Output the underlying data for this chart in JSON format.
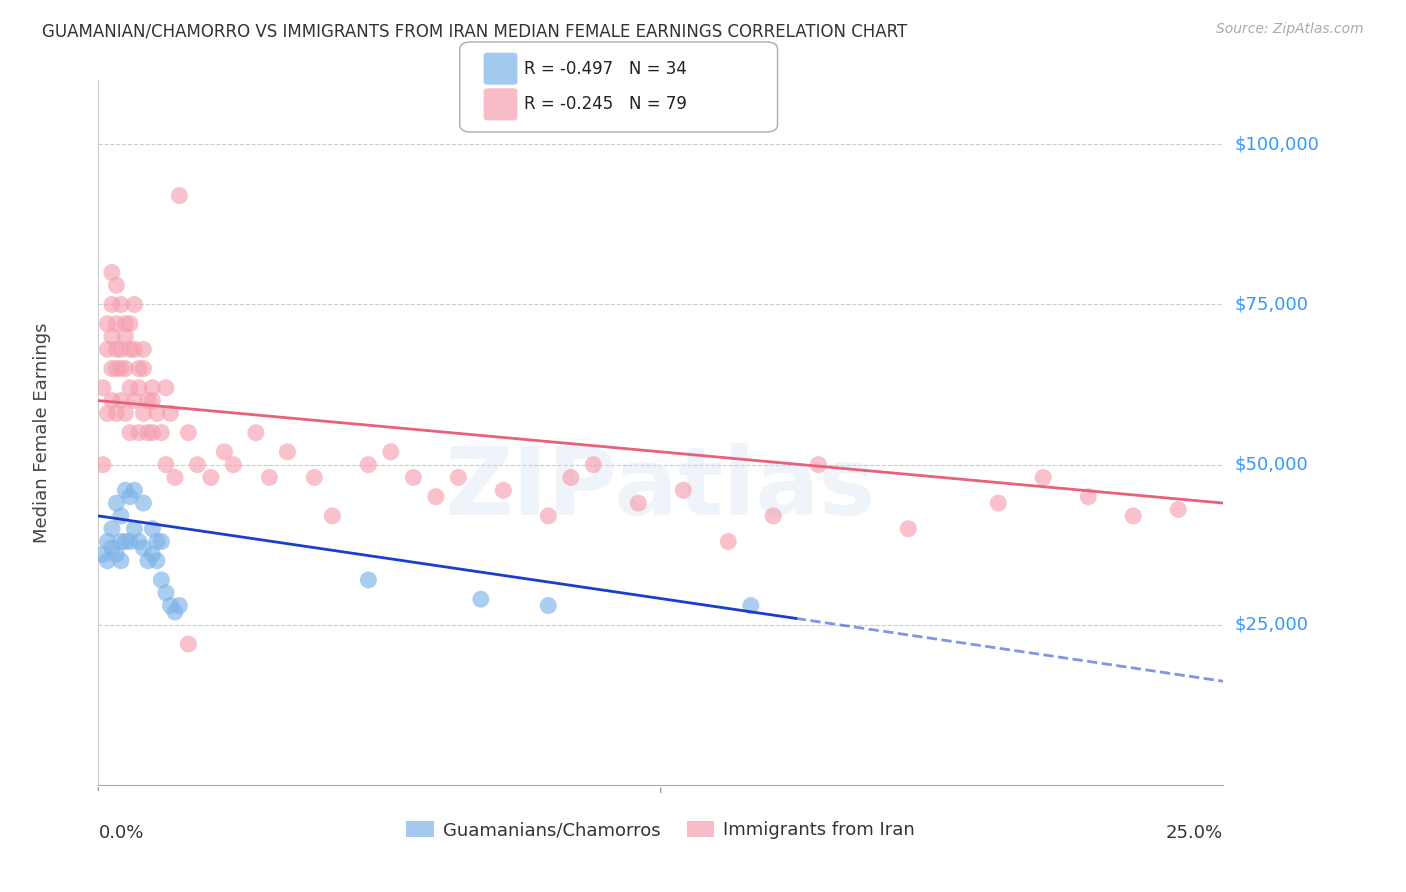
{
  "title": "GUAMANIAN/CHAMORRO VS IMMIGRANTS FROM IRAN MEDIAN FEMALE EARNINGS CORRELATION CHART",
  "source": "Source: ZipAtlas.com",
  "ylabel": "Median Female Earnings",
  "ytick_labels": [
    "$25,000",
    "$50,000",
    "$75,000",
    "$100,000"
  ],
  "ytick_values": [
    25000,
    50000,
    75000,
    100000
  ],
  "ylim": [
    0,
    110000
  ],
  "xlim": [
    0.0,
    0.25
  ],
  "legend_blue_r": "-0.497",
  "legend_blue_n": "34",
  "legend_pink_r": "-0.245",
  "legend_pink_n": "79",
  "blue_color": "#7EB3E8",
  "pink_color": "#F5A0B0",
  "line_blue": "#1A3ECC",
  "line_pink": "#E8607A",
  "background": "#FFFFFF",
  "watermark": "ZIPatlas",
  "blue_line_x0": 0.0,
  "blue_line_y0": 42000,
  "blue_line_x1": 0.155,
  "blue_line_y1": 26000,
  "pink_line_x0": 0.0,
  "pink_line_y0": 60000,
  "pink_line_x1": 0.25,
  "pink_line_y1": 44000,
  "blue_scatter_x": [
    0.001,
    0.002,
    0.002,
    0.003,
    0.003,
    0.004,
    0.004,
    0.005,
    0.005,
    0.005,
    0.006,
    0.006,
    0.007,
    0.007,
    0.008,
    0.008,
    0.009,
    0.01,
    0.01,
    0.011,
    0.012,
    0.012,
    0.013,
    0.013,
    0.014,
    0.014,
    0.015,
    0.016,
    0.017,
    0.018,
    0.06,
    0.085,
    0.1,
    0.145
  ],
  "blue_scatter_y": [
    36000,
    38000,
    35000,
    37000,
    40000,
    44000,
    36000,
    42000,
    38000,
    35000,
    46000,
    38000,
    45000,
    38000,
    46000,
    40000,
    38000,
    37000,
    44000,
    35000,
    40000,
    36000,
    38000,
    35000,
    32000,
    38000,
    30000,
    28000,
    27000,
    28000,
    32000,
    29000,
    28000,
    28000
  ],
  "pink_scatter_x": [
    0.001,
    0.001,
    0.002,
    0.002,
    0.002,
    0.003,
    0.003,
    0.003,
    0.003,
    0.004,
    0.004,
    0.004,
    0.004,
    0.005,
    0.005,
    0.005,
    0.006,
    0.006,
    0.006,
    0.007,
    0.007,
    0.007,
    0.008,
    0.008,
    0.009,
    0.009,
    0.01,
    0.01,
    0.011,
    0.011,
    0.012,
    0.012,
    0.013,
    0.014,
    0.015,
    0.016,
    0.017,
    0.018,
    0.02,
    0.022,
    0.025,
    0.028,
    0.03,
    0.035,
    0.038,
    0.042,
    0.048,
    0.052,
    0.06,
    0.065,
    0.07,
    0.075,
    0.08,
    0.09,
    0.1,
    0.105,
    0.11,
    0.12,
    0.13,
    0.14,
    0.15,
    0.16,
    0.18,
    0.2,
    0.21,
    0.22,
    0.23,
    0.24,
    0.003,
    0.004,
    0.005,
    0.006,
    0.007,
    0.008,
    0.009,
    0.01,
    0.012,
    0.015,
    0.02
  ],
  "pink_scatter_y": [
    50000,
    62000,
    68000,
    72000,
    58000,
    70000,
    65000,
    75000,
    60000,
    72000,
    65000,
    58000,
    68000,
    65000,
    60000,
    75000,
    72000,
    65000,
    58000,
    62000,
    72000,
    55000,
    68000,
    60000,
    62000,
    55000,
    58000,
    65000,
    60000,
    55000,
    62000,
    55000,
    58000,
    55000,
    50000,
    58000,
    48000,
    92000,
    55000,
    50000,
    48000,
    52000,
    50000,
    55000,
    48000,
    52000,
    48000,
    42000,
    50000,
    52000,
    48000,
    45000,
    48000,
    46000,
    42000,
    48000,
    50000,
    44000,
    46000,
    38000,
    42000,
    50000,
    40000,
    44000,
    48000,
    45000,
    42000,
    43000,
    80000,
    78000,
    68000,
    70000,
    68000,
    75000,
    65000,
    68000,
    60000,
    62000,
    22000
  ]
}
